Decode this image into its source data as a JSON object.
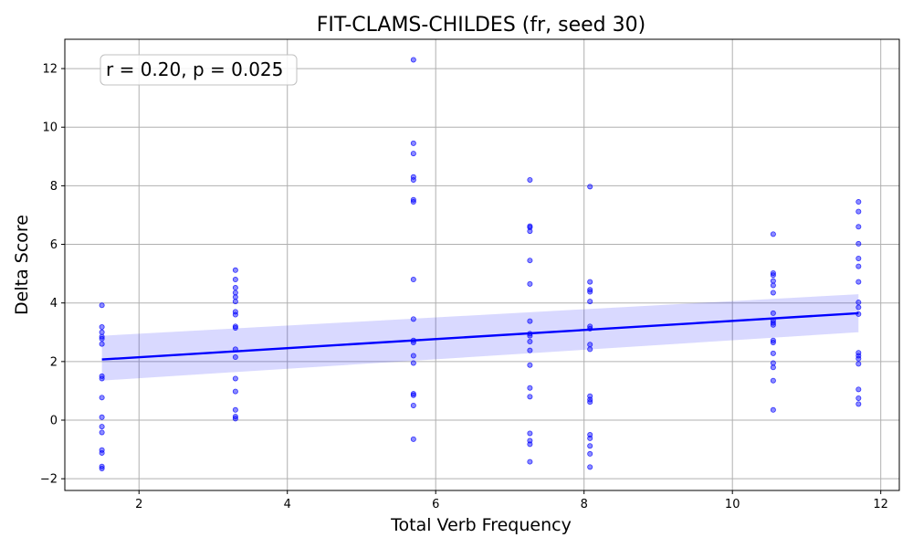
{
  "chart_data": {
    "type": "scatter",
    "title": "FIT-CLAMS-CHILDES (fr, seed 30)",
    "xlabel": "Total Verb Frequency",
    "ylabel": "Delta Score",
    "xlim": [
      1.0,
      12.25
    ],
    "ylim": [
      -2.4,
      13.0
    ],
    "xticks": [
      2,
      4,
      6,
      8,
      10,
      12
    ],
    "yticks": [
      -2,
      0,
      2,
      4,
      6,
      8,
      10,
      12
    ],
    "xtick_labels": [
      "2",
      "4",
      "6",
      "8",
      "10",
      "12"
    ],
    "ytick_labels": [
      "−2",
      "0",
      "2",
      "4",
      "6",
      "8",
      "10",
      "12"
    ],
    "grid": true,
    "annotation": "r = 0.20, p = 0.025",
    "annotation_position": "top-left",
    "colors": {
      "points": "#0000ff",
      "line": "#0000ff",
      "band": "#0000ff",
      "grid": "#b0b0b0"
    },
    "points": [
      {
        "x": 1.5,
        "y": 3.92
      },
      {
        "x": 1.5,
        "y": 3.18
      },
      {
        "x": 1.5,
        "y": 3.0
      },
      {
        "x": 1.5,
        "y": 2.85
      },
      {
        "x": 1.5,
        "y": 2.78
      },
      {
        "x": 1.5,
        "y": 2.6
      },
      {
        "x": 1.5,
        "y": 1.5
      },
      {
        "x": 1.5,
        "y": 1.42
      },
      {
        "x": 1.5,
        "y": 0.77
      },
      {
        "x": 1.5,
        "y": 0.1
      },
      {
        "x": 1.5,
        "y": -0.22
      },
      {
        "x": 1.5,
        "y": -0.42
      },
      {
        "x": 1.5,
        "y": -1.02
      },
      {
        "x": 1.5,
        "y": -1.12
      },
      {
        "x": 1.5,
        "y": -1.58
      },
      {
        "x": 1.5,
        "y": -1.65
      },
      {
        "x": 3.3,
        "y": 5.12
      },
      {
        "x": 3.3,
        "y": 4.8
      },
      {
        "x": 3.3,
        "y": 4.52
      },
      {
        "x": 3.3,
        "y": 4.35
      },
      {
        "x": 3.3,
        "y": 4.2
      },
      {
        "x": 3.3,
        "y": 4.05
      },
      {
        "x": 3.3,
        "y": 3.7
      },
      {
        "x": 3.3,
        "y": 3.6
      },
      {
        "x": 3.3,
        "y": 3.2
      },
      {
        "x": 3.3,
        "y": 3.15
      },
      {
        "x": 3.3,
        "y": 2.42
      },
      {
        "x": 3.3,
        "y": 2.15
      },
      {
        "x": 3.3,
        "y": 1.42
      },
      {
        "x": 3.3,
        "y": 0.98
      },
      {
        "x": 3.3,
        "y": 0.35
      },
      {
        "x": 3.3,
        "y": 0.12
      },
      {
        "x": 3.3,
        "y": 0.05
      },
      {
        "x": 5.7,
        "y": 12.3
      },
      {
        "x": 5.7,
        "y": 9.45
      },
      {
        "x": 5.7,
        "y": 9.1
      },
      {
        "x": 5.7,
        "y": 8.3
      },
      {
        "x": 5.7,
        "y": 8.2
      },
      {
        "x": 5.7,
        "y": 7.52
      },
      {
        "x": 5.7,
        "y": 7.45
      },
      {
        "x": 5.7,
        "y": 4.8
      },
      {
        "x": 5.7,
        "y": 3.45
      },
      {
        "x": 5.7,
        "y": 2.72
      },
      {
        "x": 5.7,
        "y": 2.65
      },
      {
        "x": 5.7,
        "y": 2.2
      },
      {
        "x": 5.7,
        "y": 1.95
      },
      {
        "x": 5.7,
        "y": 0.9
      },
      {
        "x": 5.7,
        "y": 0.85
      },
      {
        "x": 5.7,
        "y": 0.5
      },
      {
        "x": 5.7,
        "y": -0.65
      },
      {
        "x": 7.27,
        "y": 8.2
      },
      {
        "x": 7.27,
        "y": 6.62
      },
      {
        "x": 7.27,
        "y": 6.58
      },
      {
        "x": 7.27,
        "y": 6.45
      },
      {
        "x": 7.27,
        "y": 5.45
      },
      {
        "x": 7.27,
        "y": 4.65
      },
      {
        "x": 7.27,
        "y": 3.38
      },
      {
        "x": 7.27,
        "y": 2.95
      },
      {
        "x": 7.27,
        "y": 2.88
      },
      {
        "x": 7.27,
        "y": 2.68
      },
      {
        "x": 7.27,
        "y": 2.38
      },
      {
        "x": 7.27,
        "y": 1.88
      },
      {
        "x": 7.27,
        "y": 1.1
      },
      {
        "x": 7.27,
        "y": 0.8
      },
      {
        "x": 7.27,
        "y": -0.45
      },
      {
        "x": 7.27,
        "y": -0.7
      },
      {
        "x": 7.27,
        "y": -0.82
      },
      {
        "x": 7.27,
        "y": -1.42
      },
      {
        "x": 8.08,
        "y": 7.97
      },
      {
        "x": 8.08,
        "y": 4.72
      },
      {
        "x": 8.08,
        "y": 4.45
      },
      {
        "x": 8.08,
        "y": 4.38
      },
      {
        "x": 8.08,
        "y": 4.05
      },
      {
        "x": 8.08,
        "y": 3.2
      },
      {
        "x": 8.08,
        "y": 3.12
      },
      {
        "x": 8.08,
        "y": 2.58
      },
      {
        "x": 8.08,
        "y": 2.42
      },
      {
        "x": 8.08,
        "y": 0.82
      },
      {
        "x": 8.08,
        "y": 0.7
      },
      {
        "x": 8.08,
        "y": 0.62
      },
      {
        "x": 8.08,
        "y": -0.5
      },
      {
        "x": 8.08,
        "y": -0.62
      },
      {
        "x": 8.08,
        "y": -0.88
      },
      {
        "x": 8.08,
        "y": -1.15
      },
      {
        "x": 8.08,
        "y": -1.6
      },
      {
        "x": 10.55,
        "y": 6.35
      },
      {
        "x": 10.55,
        "y": 5.02
      },
      {
        "x": 10.55,
        "y": 4.95
      },
      {
        "x": 10.55,
        "y": 4.75
      },
      {
        "x": 10.55,
        "y": 4.6
      },
      {
        "x": 10.55,
        "y": 4.35
      },
      {
        "x": 10.55,
        "y": 3.65
      },
      {
        "x": 10.55,
        "y": 3.4
      },
      {
        "x": 10.55,
        "y": 3.32
      },
      {
        "x": 10.55,
        "y": 3.25
      },
      {
        "x": 10.55,
        "y": 2.72
      },
      {
        "x": 10.55,
        "y": 2.65
      },
      {
        "x": 10.55,
        "y": 2.28
      },
      {
        "x": 10.55,
        "y": 1.95
      },
      {
        "x": 10.55,
        "y": 1.8
      },
      {
        "x": 10.55,
        "y": 1.35
      },
      {
        "x": 10.55,
        "y": 0.35
      },
      {
        "x": 11.7,
        "y": 7.45
      },
      {
        "x": 11.7,
        "y": 7.12
      },
      {
        "x": 11.7,
        "y": 6.6
      },
      {
        "x": 11.7,
        "y": 6.02
      },
      {
        "x": 11.7,
        "y": 5.52
      },
      {
        "x": 11.7,
        "y": 5.25
      },
      {
        "x": 11.7,
        "y": 4.72
      },
      {
        "x": 11.7,
        "y": 4.02
      },
      {
        "x": 11.7,
        "y": 3.85
      },
      {
        "x": 11.7,
        "y": 3.62
      },
      {
        "x": 11.7,
        "y": 2.3
      },
      {
        "x": 11.7,
        "y": 2.2
      },
      {
        "x": 11.7,
        "y": 2.1
      },
      {
        "x": 11.7,
        "y": 1.92
      },
      {
        "x": 11.7,
        "y": 1.05
      },
      {
        "x": 11.7,
        "y": 0.75
      },
      {
        "x": 11.7,
        "y": 0.55
      }
    ],
    "regression": {
      "x": [
        1.5,
        11.7
      ],
      "y": [
        2.07,
        3.65
      ],
      "ci_lower": [
        1.35,
        3.0
      ],
      "ci_upper": [
        2.88,
        4.3
      ]
    }
  }
}
